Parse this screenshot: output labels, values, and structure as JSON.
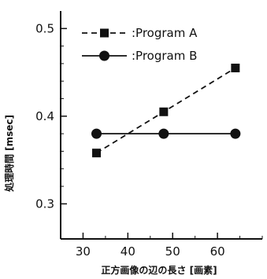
{
  "chart_data": {
    "type": "line",
    "xlabel": "正方画像の辺の長さ [画素]",
    "ylabel": "処理時間 [msec]",
    "xlim": [
      25,
      70
    ],
    "ylim": [
      0.26,
      0.52
    ],
    "xticks": [
      30,
      40,
      50,
      60
    ],
    "yticks": [
      0.3,
      0.4,
      0.5
    ],
    "xtick_labels": [
      "30",
      "40",
      "50",
      "60"
    ],
    "ytick_labels": [
      "0.3",
      "0.4",
      "0.5"
    ],
    "legend_position": "top-left",
    "series": [
      {
        "name": ":Program A",
        "line_style": "dashed",
        "marker": "square",
        "x": [
          33,
          48,
          64
        ],
        "y": [
          0.358,
          0.405,
          0.455
        ]
      },
      {
        "name": ":Program B",
        "line_style": "solid",
        "marker": "circle",
        "x": [
          33,
          48,
          64
        ],
        "y": [
          0.38,
          0.38,
          0.38
        ]
      }
    ],
    "colors": {
      "ink": "#111111"
    }
  }
}
